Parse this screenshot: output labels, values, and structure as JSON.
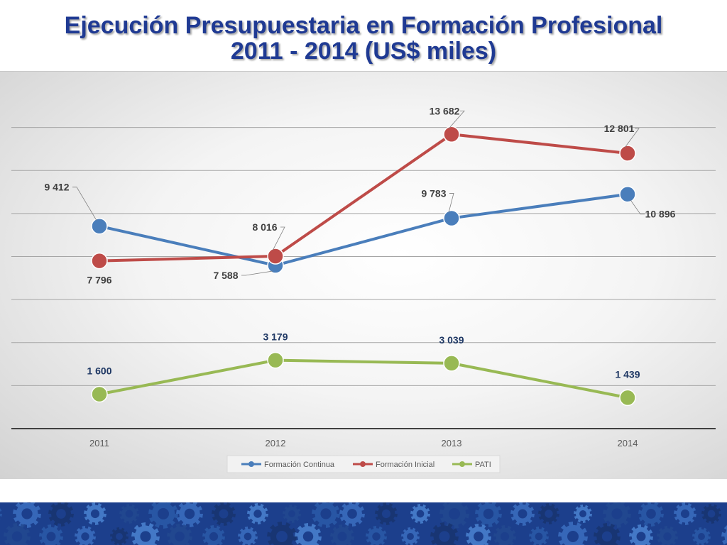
{
  "title_line1": "Ejecución Presupuestaria en Formación Profesional",
  "title_line2": "2011 - 2014 (US$ miles)",
  "colors": {
    "title": "#1f3a93",
    "footer": "#1c3f8c",
    "label_dark": "#404040",
    "label_blue": "#1f3864"
  },
  "chart_data": {
    "type": "line",
    "categories": [
      "2011",
      "2012",
      "2013",
      "2014"
    ],
    "ylim": [
      0,
      16000
    ],
    "grid": true,
    "legend_position": "bottom",
    "series": [
      {
        "name": "Formación Continua",
        "color": "#4a7ebb",
        "values": [
          9412,
          7588,
          9783,
          10896
        ],
        "labels": [
          "9 412",
          "7 588",
          "9 783",
          "10 896"
        ]
      },
      {
        "name": "Formación Inicial",
        "color": "#be4b48",
        "values": [
          7796,
          8016,
          13682,
          12801
        ],
        "labels": [
          "7 796",
          "8 016",
          "13 682",
          "12 801"
        ]
      },
      {
        "name": "PATI",
        "color": "#98b954",
        "values": [
          1600,
          3179,
          3039,
          1439
        ],
        "labels": [
          "1 600",
          "3 179",
          "3 039",
          "1 439"
        ]
      }
    ]
  }
}
